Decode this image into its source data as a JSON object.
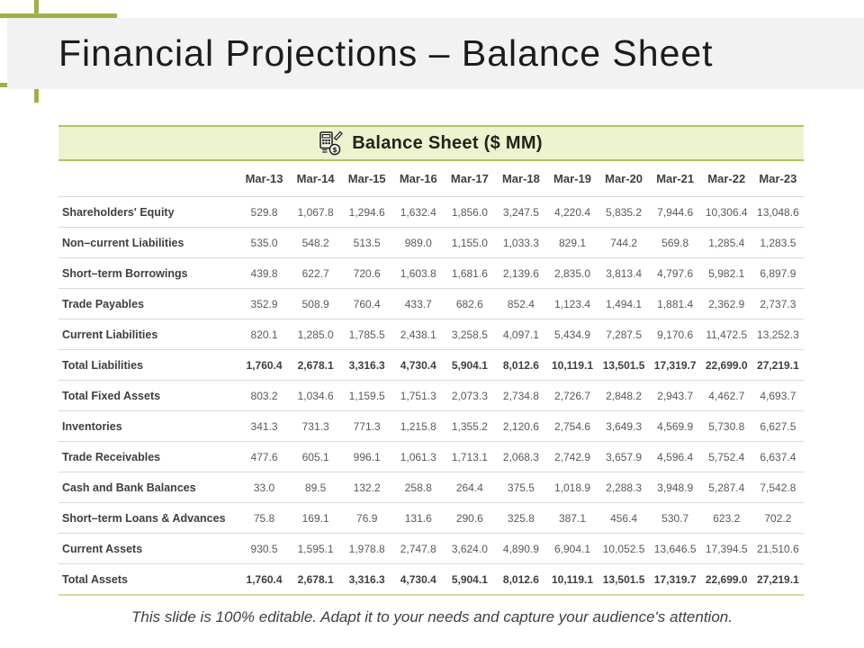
{
  "slide": {
    "title": "Financial Projections – Balance Sheet",
    "footer": "This slide is 100% editable. Adapt it to your needs and capture your audience's attention."
  },
  "table": {
    "title": "Balance Sheet ($ MM)",
    "icon": "calculator-icon",
    "columns": [
      "Mar-13",
      "Mar-14",
      "Mar-15",
      "Mar-16",
      "Mar-17",
      "Mar-18",
      "Mar-19",
      "Mar-20",
      "Mar-21",
      "Mar-22",
      "Mar-23"
    ],
    "rows": [
      {
        "label": "Shareholders' Equity",
        "emphasis": false,
        "values": [
          "529.8",
          "1,067.8",
          "1,294.6",
          "1,632.4",
          "1,856.0",
          "3,247.5",
          "4,220.4",
          "5,835.2",
          "7,944.6",
          "10,306.4",
          "13,048.6"
        ]
      },
      {
        "label": "Non–current Liabilities",
        "emphasis": false,
        "values": [
          "535.0",
          "548.2",
          "513.5",
          "989.0",
          "1,155.0",
          "1,033.3",
          "829.1",
          "744.2",
          "569.8",
          "1,285.4",
          "1,283.5"
        ]
      },
      {
        "label": "Short–term Borrowings",
        "emphasis": false,
        "values": [
          "439.8",
          "622.7",
          "720.6",
          "1,603.8",
          "1,681.6",
          "2,139.6",
          "2,835.0",
          "3,813.4",
          "4,797.6",
          "5,982.1",
          "6,897.9"
        ]
      },
      {
        "label": "Trade Payables",
        "emphasis": false,
        "values": [
          "352.9",
          "508.9",
          "760.4",
          "433.7",
          "682.6",
          "852.4",
          "1,123.4",
          "1,494.1",
          "1,881.4",
          "2,362.9",
          "2,737.3"
        ]
      },
      {
        "label": "Current Liabilities",
        "emphasis": false,
        "values": [
          "820.1",
          "1,285.0",
          "1,785.5",
          "2,438.1",
          "3,258.5",
          "4,097.1",
          "5,434.9",
          "7,287.5",
          "9,170.6",
          "11,472.5",
          "13,252.3"
        ]
      },
      {
        "label": "Total Liabilities",
        "emphasis": true,
        "values": [
          "1,760.4",
          "2,678.1",
          "3,316.3",
          "4,730.4",
          "5,904.1",
          "8,012.6",
          "10,119.1",
          "13,501.5",
          "17,319.7",
          "22,699.0",
          "27,219.1"
        ]
      },
      {
        "label": "Total Fixed Assets",
        "emphasis": false,
        "values": [
          "803.2",
          "1,034.6",
          "1,159.5",
          "1,751.3",
          "2,073.3",
          "2,734.8",
          "2,726.7",
          "2,848.2",
          "2,943.7",
          "4,462.7",
          "4,693.7"
        ]
      },
      {
        "label": "Inventories",
        "emphasis": false,
        "values": [
          "341.3",
          "731.3",
          "771.3",
          "1,215.8",
          "1,355.2",
          "2,120.6",
          "2,754.6",
          "3,649.3",
          "4,569.9",
          "5,730.8",
          "6,627.5"
        ]
      },
      {
        "label": "Trade Receivables",
        "emphasis": false,
        "values": [
          "477.6",
          "605.1",
          "996.1",
          "1,061.3",
          "1,713.1",
          "2,068.3",
          "2,742.9",
          "3,657.9",
          "4,596.4",
          "5,752.4",
          "6,637.4"
        ]
      },
      {
        "label": "Cash and Bank Balances",
        "emphasis": false,
        "values": [
          "33.0",
          "89.5",
          "132.2",
          "258.8",
          "264.4",
          "375.5",
          "1,018.9",
          "2,288.3",
          "3,948.9",
          "5,287.4",
          "7,542.8"
        ]
      },
      {
        "label": "Short–term Loans & Advances",
        "emphasis": false,
        "values": [
          "75.8",
          "169.1",
          "76.9",
          "131.6",
          "290.6",
          "325.8",
          "387.1",
          "456.4",
          "530.7",
          "623.2",
          "702.2"
        ]
      },
      {
        "label": "Current Assets",
        "emphasis": false,
        "values": [
          "930.5",
          "1,595.1",
          "1,978.8",
          "2,747.8",
          "3,624.0",
          "4,890.9",
          "6,904.1",
          "10,052.5",
          "13,646.5",
          "17,394.5",
          "21,510.6"
        ]
      },
      {
        "label": "Total Assets",
        "emphasis": true,
        "values": [
          "1,760.4",
          "2,678.1",
          "3,316.3",
          "4,730.4",
          "5,904.1",
          "8,012.6",
          "10,119.1",
          "13,501.5",
          "17,319.7",
          "22,699.0",
          "27,219.1"
        ]
      }
    ]
  },
  "colors": {
    "accent": "#a0b046",
    "title_band_bg": "#f2f2f2",
    "table_header_bg": "#edf2cf",
    "table_header_border": "#b6c15c",
    "row_divider": "#d9d9d9",
    "table_bottom_border": "#d4dd9b",
    "text_dark": "#3f3f3f",
    "text_value": "#595959"
  }
}
